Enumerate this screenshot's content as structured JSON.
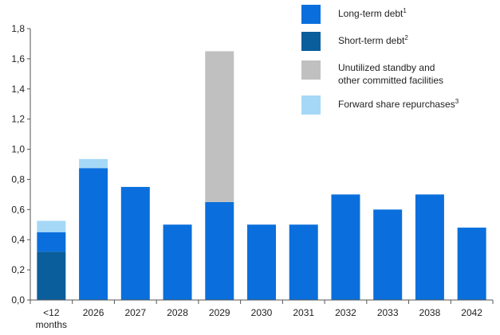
{
  "chart_data": {
    "type": "bar",
    "stacked": true,
    "categories": [
      "<12 months",
      "2026",
      "2027",
      "2028",
      "2029",
      "2030",
      "2031",
      "2032",
      "2033",
      "2038",
      "2042"
    ],
    "category_lines": [
      [
        "<12",
        "months"
      ],
      [
        "2026"
      ],
      [
        "2027"
      ],
      [
        "2028"
      ],
      [
        "2029"
      ],
      [
        "2030"
      ],
      [
        "2031"
      ],
      [
        "2032"
      ],
      [
        "2033"
      ],
      [
        "2038"
      ],
      [
        "2042"
      ]
    ],
    "series": [
      {
        "name": "Short-term debt",
        "footnote": "2",
        "color": "#0a5e9b",
        "values": [
          0.32,
          0,
          0,
          0,
          0,
          0,
          0,
          0,
          0,
          0,
          0
        ]
      },
      {
        "name": "Long-term debt",
        "footnote": "1",
        "color": "#0a6fdc",
        "values": [
          0.13,
          0.875,
          0.75,
          0.5,
          0.65,
          0.5,
          0.5,
          0.7,
          0.6,
          0.7,
          0.48
        ]
      },
      {
        "name": "Unutilized standby and other committed facilities",
        "color": "#c0c0c0",
        "values": [
          0,
          0,
          0,
          0,
          1.0,
          0,
          0,
          0,
          0,
          0,
          0
        ]
      },
      {
        "name": "Forward share repurchases",
        "footnote": "3",
        "color": "#a5d8f6",
        "values": [
          0.075,
          0.06,
          0,
          0,
          0,
          0,
          0,
          0,
          0,
          0,
          0
        ]
      }
    ],
    "ylim": [
      0,
      1.8
    ],
    "yticks": [
      0,
      0.2,
      0.4,
      0.6,
      0.8,
      1.0,
      1.2,
      1.4,
      1.6,
      1.8
    ],
    "ytick_labels": [
      "0,0",
      "0,2",
      "0,4",
      "0,6",
      "0,8",
      "1,0",
      "1,2",
      "1,4",
      "1,6",
      "1,8"
    ],
    "grid": false,
    "legend_position": "top-right"
  },
  "legend": {
    "long_term": {
      "label": "Long-term debt",
      "sup": "1",
      "color": "#0a6fdc"
    },
    "short_term": {
      "label": "Short-term debt",
      "sup": "2",
      "color": "#0a5e9b"
    },
    "unutilized": {
      "line1": "Unutilized standby and",
      "line2": "other committed facilities",
      "color": "#c0c0c0"
    },
    "forward": {
      "label": "Forward share repurchases",
      "sup": "3",
      "color": "#a5d8f6"
    }
  }
}
